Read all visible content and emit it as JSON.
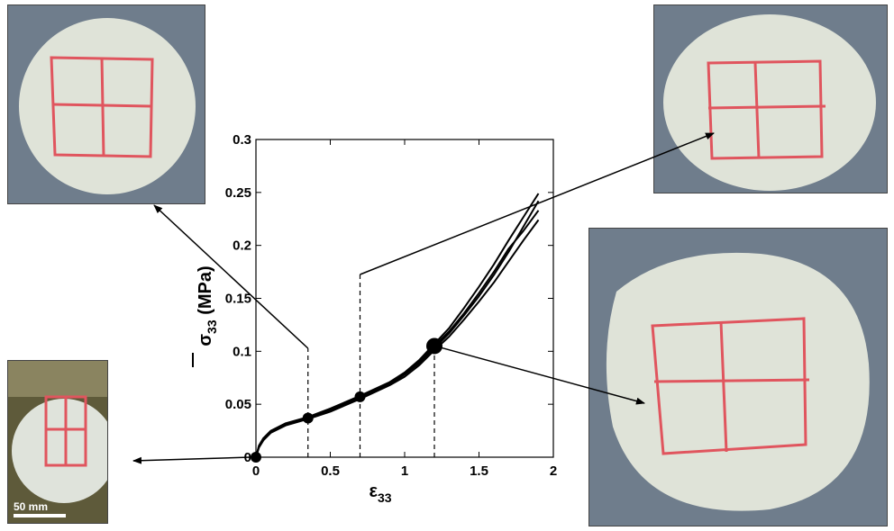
{
  "chart_data": {
    "type": "line",
    "xlabel": "ε33",
    "ylabel": "σ33 (MPa)",
    "xlim": [
      0,
      2
    ],
    "ylim": [
      0,
      0.3
    ],
    "xticks": [
      "0",
      "0.5",
      "1",
      "1.5",
      "2"
    ],
    "yticks": [
      "0",
      "0.05",
      "0.1",
      "0.15",
      "0.2",
      "0.25",
      "0.3"
    ],
    "series": [
      {
        "x": [
          0,
          0.02,
          0.05,
          0.1,
          0.2,
          0.35,
          0.5,
          0.7,
          0.9,
          1.0,
          1.1,
          1.2,
          1.3,
          1.4,
          1.5,
          1.6,
          1.7,
          1.8,
          1.9
        ],
        "values": [
          0,
          0.01,
          0.017,
          0.024,
          0.031,
          0.037,
          0.044,
          0.056,
          0.069,
          0.078,
          0.089,
          0.103,
          0.117,
          0.134,
          0.152,
          0.172,
          0.194,
          0.218,
          0.242
        ]
      },
      {
        "x": [
          0,
          0.02,
          0.05,
          0.1,
          0.2,
          0.35,
          0.5,
          0.7,
          0.9,
          1.0,
          1.1,
          1.2,
          1.3,
          1.4,
          1.5,
          1.6,
          1.7,
          1.8,
          1.9
        ],
        "values": [
          0,
          0.011,
          0.018,
          0.025,
          0.032,
          0.038,
          0.046,
          0.058,
          0.071,
          0.08,
          0.092,
          0.107,
          0.122,
          0.141,
          0.161,
          0.182,
          0.205,
          0.227,
          0.249
        ]
      },
      {
        "x": [
          0,
          0.02,
          0.05,
          0.1,
          0.2,
          0.35,
          0.5,
          0.7,
          0.9,
          1.0,
          1.1,
          1.2,
          1.3,
          1.4,
          1.5,
          1.6,
          1.7,
          1.8,
          1.9
        ],
        "values": [
          0,
          0.009,
          0.016,
          0.023,
          0.03,
          0.036,
          0.043,
          0.055,
          0.068,
          0.076,
          0.087,
          0.101,
          0.114,
          0.13,
          0.147,
          0.165,
          0.185,
          0.205,
          0.224
        ]
      },
      {
        "x": [
          0,
          0.02,
          0.05,
          0.1,
          0.2,
          0.35,
          0.5,
          0.7,
          0.9,
          1.0,
          1.1,
          1.2,
          1.3,
          1.4,
          1.5,
          1.6,
          1.7,
          1.8,
          1.9
        ],
        "values": [
          0,
          0.01,
          0.017,
          0.024,
          0.031,
          0.037,
          0.045,
          0.057,
          0.07,
          0.079,
          0.09,
          0.105,
          0.119,
          0.136,
          0.155,
          0.175,
          0.197,
          0.214,
          0.233
        ]
      }
    ],
    "markers": [
      {
        "x": 0,
        "y": 0
      },
      {
        "x": 0.35,
        "y": 0.037
      },
      {
        "x": 0.7,
        "y": 0.057
      },
      {
        "x": 1.2,
        "y": 0.105
      }
    ],
    "grid": false
  },
  "scale_bar": {
    "label": "50 mm"
  },
  "colors": {
    "specimen": "#dfe3d8",
    "grid_marks": "#e0555e",
    "background_blue": "#7a8896"
  }
}
